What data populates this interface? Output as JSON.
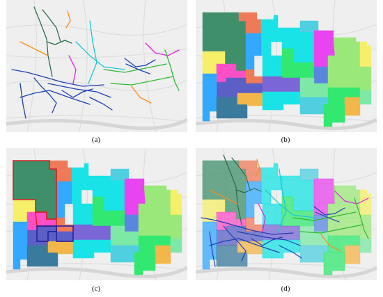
{
  "panels": [
    {
      "id": "a",
      "label": "(a)",
      "content": "network"
    },
    {
      "id": "b",
      "label": "(b)",
      "content": "zones"
    },
    {
      "id": "c",
      "label": "(c)",
      "content": "zones-highlight"
    },
    {
      "id": "d",
      "label": "(d)",
      "content": "zones-network"
    }
  ],
  "colors": {
    "basemap": "#efefef",
    "road": "#dddddd",
    "river": "#d6d6d6",
    "highlight_outline": "#d62020",
    "secondary_outline": "#1a1a9a",
    "network_blue": "#1f3fb4",
    "network_dark_green": "#2b6b4a",
    "network_cyan": "#19c8d6",
    "network_green": "#2fb82f",
    "network_magenta": "#e020e0",
    "network_orange": "#ff8a1a"
  },
  "zone_colors": [
    "#3f8f6a",
    "#ef7a5a",
    "#19e3e6",
    "#50cfe0",
    "#f6ef6a",
    "#e844ef",
    "#7a66d6",
    "#33e870",
    "#9be87a",
    "#5a86e0",
    "#f3b64a",
    "#5b5fc6",
    "#7ee8a6",
    "#34a8ff",
    "#ff4fc7",
    "#3a7a9c"
  ]
}
